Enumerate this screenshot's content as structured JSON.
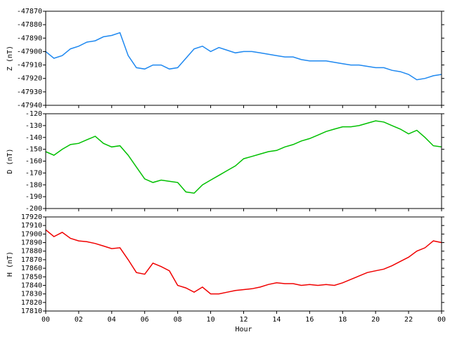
{
  "chart_data": [
    {
      "type": "line",
      "ylabel": "Z (nT)",
      "ylim": [
        -47940,
        -47870
      ],
      "yticks": [
        -47940,
        -47930,
        -47920,
        -47910,
        -47900,
        -47890,
        -47880,
        -47870
      ],
      "xlim": [
        0,
        24
      ],
      "x": [
        0,
        0.5,
        1,
        1.5,
        2,
        2.5,
        3,
        3.5,
        4,
        4.5,
        5,
        5.5,
        6,
        6.5,
        7,
        7.5,
        8,
        8.5,
        9,
        9.5,
        10,
        10.5,
        11,
        11.5,
        12,
        12.5,
        13,
        13.5,
        14,
        14.5,
        15,
        15.5,
        16,
        16.5,
        17,
        17.5,
        18,
        18.5,
        19,
        19.5,
        20,
        20.5,
        21,
        21.5,
        22,
        22.5,
        23,
        23.5,
        24
      ],
      "series": [
        {
          "color": "#1e88f0",
          "values": [
            -47900,
            -47905,
            -47903,
            -47898,
            -47896,
            -47893,
            -47892,
            -47889,
            -47888,
            -47886,
            -47903,
            -47912,
            -47913,
            -47910,
            -47910,
            -47913,
            -47912,
            -47905,
            -47898,
            -47896,
            -47900,
            -47897,
            -47899,
            -47901,
            -47900,
            -47900,
            -47901,
            -47902,
            -47903,
            -47904,
            -47904,
            -47906,
            -47907,
            -47907,
            -47907,
            -47908,
            -47909,
            -47910,
            -47910,
            -47911,
            -47912,
            -47912,
            -47914,
            -47915,
            -47917,
            -47921,
            -47920,
            -47918,
            -47917
          ]
        }
      ]
    },
    {
      "type": "line",
      "ylabel": "D (nT)",
      "ylim": [
        -200,
        -120
      ],
      "yticks": [
        -200,
        -190,
        -180,
        -170,
        -160,
        -150,
        -140,
        -130,
        -120
      ],
      "xlim": [
        0,
        24
      ],
      "x": [
        0,
        0.5,
        1,
        1.5,
        2,
        2.5,
        3,
        3.5,
        4,
        4.5,
        5,
        5.5,
        6,
        6.5,
        7,
        7.5,
        8,
        8.5,
        9,
        9.5,
        10,
        10.5,
        11,
        11.5,
        12,
        12.5,
        13,
        13.5,
        14,
        14.5,
        15,
        15.5,
        16,
        16.5,
        17,
        17.5,
        18,
        18.5,
        19,
        19.5,
        20,
        20.5,
        21,
        21.5,
        22,
        22.5,
        23,
        23.5,
        24
      ],
      "series": [
        {
          "color": "#00c000",
          "values": [
            -152,
            -155,
            -150,
            -146,
            -145,
            -142,
            -139,
            -145,
            -148,
            -147,
            -155,
            -165,
            -175,
            -178,
            -176,
            -177,
            -178,
            -186,
            -187,
            -180,
            -176,
            -172,
            -168,
            -164,
            -158,
            -156,
            -154,
            -152,
            -151,
            -148,
            -146,
            -143,
            -141,
            -138,
            -135,
            -133,
            -131,
            -131,
            -130,
            -128,
            -126,
            -127,
            -130,
            -133,
            -137,
            -134,
            -140,
            -147,
            -148
          ]
        }
      ]
    },
    {
      "type": "line",
      "ylabel": "H (nT)",
      "xlabel": "Hour",
      "ylim": [
        17810,
        17920
      ],
      "yticks": [
        17810,
        17820,
        17830,
        17840,
        17850,
        17860,
        17870,
        17880,
        17890,
        17900,
        17910,
        17920
      ],
      "xlim": [
        0,
        24
      ],
      "xticks": [
        {
          "value": 0,
          "label": "00"
        },
        {
          "value": 2,
          "label": "02"
        },
        {
          "value": 4,
          "label": "04"
        },
        {
          "value": 6,
          "label": "06"
        },
        {
          "value": 8,
          "label": "08"
        },
        10,
        12,
        14,
        16,
        18,
        20,
        22,
        {
          "value": 24,
          "label": "00"
        }
      ],
      "x": [
        0,
        0.5,
        1,
        1.5,
        2,
        2.5,
        3,
        3.5,
        4,
        4.5,
        5,
        5.5,
        6,
        6.5,
        7,
        7.5,
        8,
        8.5,
        9,
        9.5,
        10,
        10.5,
        11,
        11.5,
        12,
        12.5,
        13,
        13.5,
        14,
        14.5,
        15,
        15.5,
        16,
        16.5,
        17,
        17.5,
        18,
        18.5,
        19,
        19.5,
        20,
        20.5,
        21,
        21.5,
        22,
        22.5,
        23,
        23.5,
        24
      ],
      "series": [
        {
          "color": "#f00000",
          "values": [
            17905,
            17897,
            17902,
            17895,
            17892,
            17891,
            17889,
            17886,
            17883,
            17884,
            17870,
            17855,
            17853,
            17866,
            17862,
            17857,
            17840,
            17837,
            17832,
            17838,
            17830,
            17830,
            17832,
            17834,
            17835,
            17836,
            17838,
            17841,
            17843,
            17842,
            17842,
            17840,
            17841,
            17840,
            17841,
            17840,
            17843,
            17847,
            17851,
            17855,
            17857,
            17859,
            17863,
            17868,
            17873,
            17880,
            17884,
            17892,
            17890
          ]
        }
      ]
    }
  ]
}
